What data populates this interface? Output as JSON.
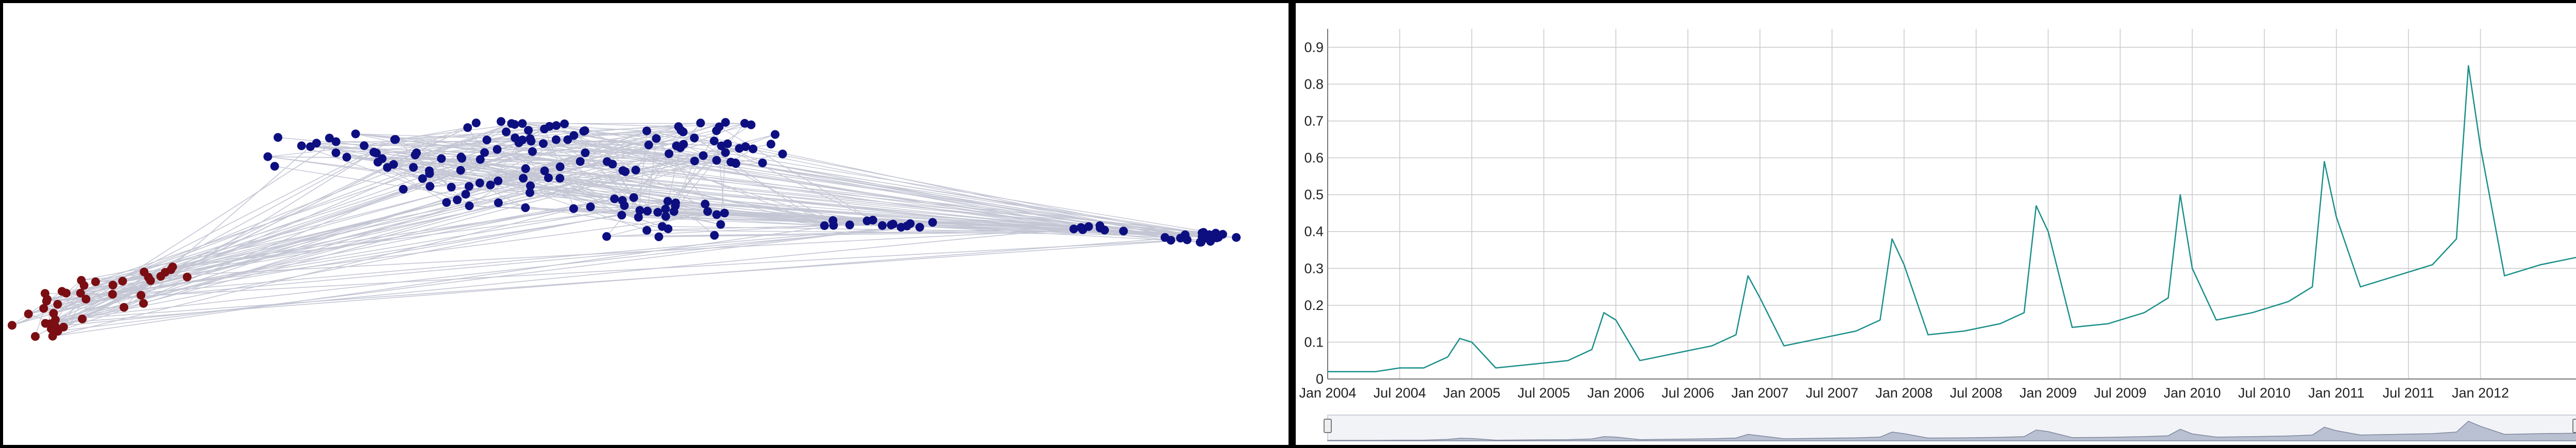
{
  "colors": {
    "panel_border": "#000000",
    "network_edge": "#c4c6d4",
    "cluster_a": "#7a0e12",
    "cluster_b": "#0d0f80",
    "trend_line": "#1a8f8a",
    "grid": "#c9c9c9",
    "navigator_fill": "#b8c0d2",
    "navigator_stroke": "#7f889c"
  },
  "chart_data": [
    {
      "type": "network",
      "groups": [
        {
          "color": "#7a0e12",
          "node_count": 40
        },
        {
          "color": "#0d0f80",
          "node_count": 190
        }
      ]
    },
    {
      "type": "line",
      "x_ticks": [
        "Jan 2004",
        "Jul 2004",
        "Jan 2005",
        "Jul 2005",
        "Jan 2006",
        "Jul 2006",
        "Jan 2007",
        "Jul 2007",
        "Jan 2008",
        "Jul 2008",
        "Jan 2009",
        "Jul 2009",
        "Jan 2010",
        "Jul 2010",
        "Jan 2011",
        "Jul 2011",
        "Jan 2012"
      ],
      "y_ticks": [
        "0",
        "0.1",
        "0.2",
        "0.3",
        "0.4",
        "0.5",
        "0.6",
        "0.7",
        "0.8",
        "0.9"
      ],
      "ylim": [
        0,
        0.95
      ],
      "xlim": [
        "2004-01",
        "2012-09"
      ],
      "grid": true,
      "navigator": true,
      "series": [
        {
          "x": [
            "2004-01",
            "2004-03",
            "2004-05",
            "2004-07",
            "2004-09",
            "2004-11",
            "2004-12",
            "2005-01",
            "2005-03",
            "2005-06",
            "2005-09",
            "2005-11",
            "2005-12",
            "2006-01",
            "2006-03",
            "2006-06",
            "2006-09",
            "2006-11",
            "2006-12",
            "2007-01",
            "2007-03",
            "2007-06",
            "2007-09",
            "2007-11",
            "2007-12",
            "2008-01",
            "2008-03",
            "2008-06",
            "2008-09",
            "2008-11",
            "2008-12",
            "2009-01",
            "2009-03",
            "2009-06",
            "2009-09",
            "2009-11",
            "2009-12",
            "2010-01",
            "2010-03",
            "2010-06",
            "2010-09",
            "2010-11",
            "2010-12",
            "2011-01",
            "2011-03",
            "2011-06",
            "2011-09",
            "2011-11",
            "2011-12",
            "2012-01",
            "2012-03",
            "2012-06",
            "2012-09"
          ],
          "values": [
            0.02,
            0.02,
            0.02,
            0.03,
            0.03,
            0.06,
            0.11,
            0.1,
            0.03,
            0.04,
            0.05,
            0.08,
            0.18,
            0.16,
            0.05,
            0.07,
            0.09,
            0.12,
            0.28,
            0.22,
            0.09,
            0.11,
            0.13,
            0.16,
            0.38,
            0.31,
            0.12,
            0.13,
            0.15,
            0.18,
            0.47,
            0.4,
            0.14,
            0.15,
            0.18,
            0.22,
            0.5,
            0.3,
            0.16,
            0.18,
            0.21,
            0.25,
            0.59,
            0.44,
            0.25,
            0.28,
            0.31,
            0.38,
            0.85,
            0.63,
            0.28,
            0.31,
            0.33
          ]
        }
      ]
    }
  ]
}
